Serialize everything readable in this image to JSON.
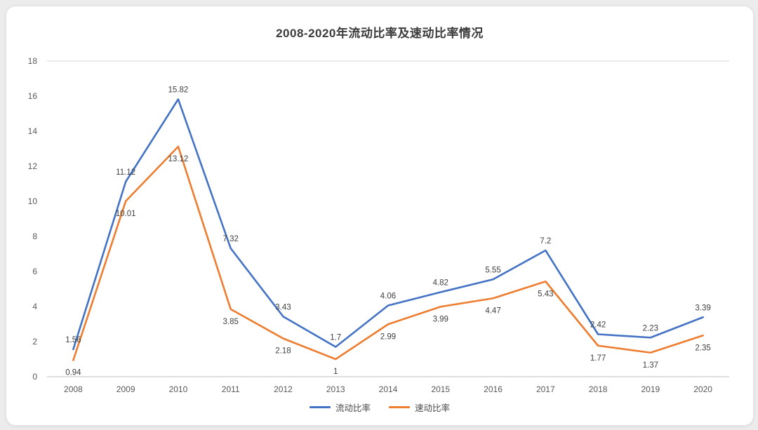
{
  "chart_data": {
    "type": "line",
    "title": "2008-2020年流动比率及速动比率情况",
    "categories": [
      "2008",
      "2009",
      "2010",
      "2011",
      "2012",
      "2013",
      "2014",
      "2015",
      "2016",
      "2017",
      "2018",
      "2019",
      "2020"
    ],
    "series": [
      {
        "name": "流动比率",
        "color": "#4472c4",
        "values": [
          1.56,
          11.12,
          15.82,
          7.32,
          3.43,
          1.7,
          4.06,
          4.82,
          5.55,
          7.2,
          2.42,
          2.23,
          3.39
        ]
      },
      {
        "name": "速动比率",
        "color": "#ed7d31",
        "values": [
          0.94,
          10.01,
          13.12,
          3.85,
          2.18,
          1,
          2.99,
          3.99,
          4.47,
          5.43,
          1.77,
          1.37,
          2.35
        ]
      }
    ],
    "xlabel": "",
    "ylabel": "",
    "ylim": [
      0,
      18
    ],
    "y_ticks": [
      0,
      2,
      4,
      6,
      8,
      10,
      12,
      14,
      16,
      18
    ],
    "grid": false,
    "legend_position": "bottom",
    "data_labels_shown": true
  }
}
